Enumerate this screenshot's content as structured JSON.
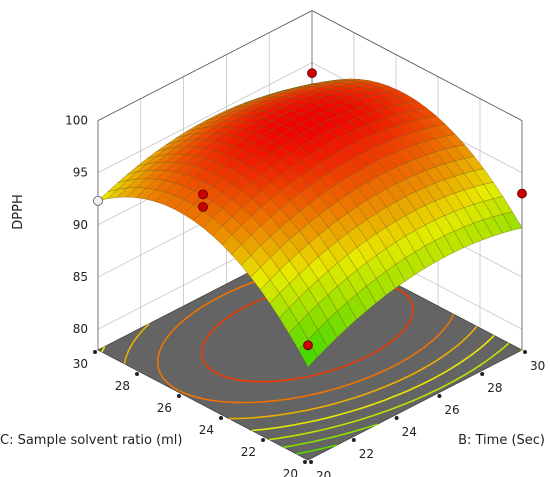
{
  "chart_data": {
    "type": "surface3d",
    "z_label": "DPPH",
    "x_label": "B: Time (Sec)",
    "y_label": "C: Sample solvent ratio (ml)",
    "z_ticks": [
      "80",
      "85",
      "90",
      "95",
      "100"
    ],
    "x_ticks": [
      "20",
      "22",
      "24",
      "26",
      "28",
      "30"
    ],
    "y_ticks": [
      "20",
      "22",
      "24",
      "26",
      "28",
      "30"
    ],
    "z_range": [
      78,
      100
    ],
    "x_range": [
      20,
      30
    ],
    "y_range": [
      20,
      30
    ],
    "grid": true,
    "surface": {
      "form": "quadratic",
      "b0": 98.0,
      "bB": 0.8,
      "bC": 2.1,
      "bBC": -0.6,
      "bBB": -2.2,
      "bCC": -5.4
    },
    "design_points": [
      {
        "time": 20,
        "ratio": 25,
        "dpph": 98.2
      },
      {
        "time": 20,
        "ratio": 25,
        "dpph": 97.0
      },
      {
        "time": 30,
        "ratio": 30,
        "dpph": 94.0
      },
      {
        "time": 20,
        "ratio": 20,
        "dpph": 89.0
      },
      {
        "time": 30,
        "ratio": 20,
        "dpph": 93.0
      }
    ],
    "colors": {
      "low": "#2fd400",
      "mid": "#e8ea00",
      "high": "#f00000",
      "floor": "#646464",
      "point": "#cc0000"
    }
  }
}
